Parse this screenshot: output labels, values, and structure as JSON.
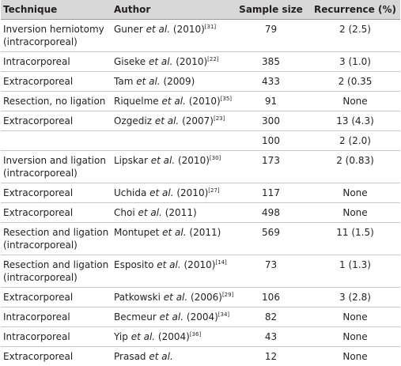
{
  "columns": [
    "Technique",
    "Author",
    "Sample size",
    "Recurrence (%)"
  ],
  "rows": [
    {
      "technique": "Inversion herniotomy",
      "technique2": "(intracorporeal)",
      "author": "Guner",
      "etal": "et al.",
      "year": "(2010)",
      "ref": "[31]",
      "sample": "79",
      "recurrence": "2 (2.5)"
    },
    {
      "technique": "Intracorporeal",
      "technique2": "",
      "author": "Giseke",
      "etal": "et al.",
      "year": "(2010)",
      "ref": "[22]",
      "sample": "385",
      "recurrence": "3 (1.0)"
    },
    {
      "technique": "Extracorporeal",
      "technique2": "",
      "author": "Tam",
      "etal": "et al.",
      "year": "(2009)",
      "ref": "",
      "sample": "433",
      "recurrence": "2 (0.35"
    },
    {
      "technique": "Resection, no ligation",
      "technique2": "",
      "author": "Riquelme",
      "etal": "et al.",
      "year": "(2010)",
      "ref": "[35]",
      "sample": "91",
      "recurrence": "None"
    },
    {
      "technique": "Extracorporeal",
      "technique2": "",
      "author": "Ozgediz",
      "etal": "et al.",
      "year": "(2007)",
      "ref": "[23]",
      "sample": "300",
      "recurrence": "13 (4.3)"
    },
    {
      "technique": "",
      "technique2": "",
      "author": "",
      "etal": "",
      "year": "",
      "ref": "",
      "sample": "100",
      "recurrence": "2 (2.0)"
    },
    {
      "technique": "Inversion and ligation",
      "technique2": "(intracorporeal)",
      "author": "Lipskar",
      "etal": "et al.",
      "year": "(2010)",
      "ref": "[30]",
      "sample": "173",
      "recurrence": "2 (0.83)"
    },
    {
      "technique": "Extracorporeal",
      "technique2": "",
      "author": "Uchida",
      "etal": "et al.",
      "year": "(2010)",
      "ref": "[27]",
      "sample": "117",
      "recurrence": "None"
    },
    {
      "technique": "Extracorporeal",
      "technique2": "",
      "author": "Choi",
      "etal": "et al.",
      "year": "(2011)",
      "ref": "",
      "sample": "498",
      "recurrence": "None"
    },
    {
      "technique": "Resection and ligation",
      "technique2": "(intracorporeal)",
      "author": "Montupet",
      "etal": "et al.",
      "year": "(2011)",
      "ref": "",
      "sample": "569",
      "recurrence": "11 (1.5)"
    },
    {
      "technique": "Resection and ligation",
      "technique2": "(intracorporeal)",
      "author": "Esposito",
      "etal": "et al.",
      "year": "(2010)",
      "ref": "[14]",
      "sample": "73",
      "recurrence": "1 (1.3)"
    },
    {
      "technique": "Extracorporeal",
      "technique2": "",
      "author": "Patkowski",
      "etal": "et al.",
      "year": "(2006)",
      "ref": "[29]",
      "sample": "106",
      "recurrence": "3 (2.8)"
    },
    {
      "technique": "Intracorporeal",
      "technique2": "",
      "author": "Becmeur",
      "etal": "et al.",
      "year": "(2004)",
      "ref": "[34]",
      "sample": "82",
      "recurrence": "None"
    },
    {
      "technique": "Intracorporeal",
      "technique2": "",
      "author": "Yip",
      "etal": "et al.",
      "year": "(2004)",
      "ref": "[36]",
      "sample": "43",
      "recurrence": "None"
    },
    {
      "technique": "Extracorporeal",
      "technique2": "",
      "author": "Prasad",
      "etal": "et al.",
      "year": "",
      "ref": "",
      "sample": "12",
      "recurrence": "None"
    }
  ]
}
